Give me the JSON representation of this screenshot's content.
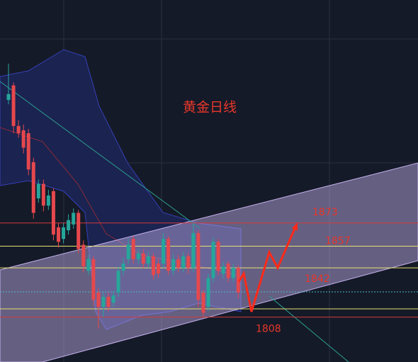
{
  "chart_data": {
    "type": "candlestick",
    "title": "黄金日线",
    "ylim": [
      1777,
      2027
    ],
    "open": [
      1958,
      1968,
      1940,
      1937,
      1935,
      1915,
      1890,
      1900,
      1885,
      1895,
      1870,
      1862,
      1868,
      1872,
      1880,
      1858,
      1840,
      1848,
      1825,
      1815,
      1822,
      1818,
      1825,
      1840,
      1848,
      1862,
      1848,
      1852,
      1845,
      1850,
      1845,
      1845,
      1862,
      1840,
      1848,
      1842,
      1850,
      1842,
      1866,
      1825,
      1815,
      1835,
      1860,
      1838,
      1845,
      1835,
      1842
    ],
    "close": [
      1962,
      1940,
      1935,
      1925,
      1910,
      1880,
      1900,
      1885,
      1892,
      1865,
      1860,
      1870,
      1875,
      1880,
      1855,
      1843,
      1848,
      1820,
      1815,
      1822,
      1815,
      1823,
      1840,
      1845,
      1858,
      1848,
      1852,
      1845,
      1850,
      1837,
      1838,
      1862,
      1840,
      1848,
      1842,
      1850,
      1842,
      1866,
      1820,
      1811,
      1835,
      1860,
      1840,
      1843,
      1835,
      1842,
      1825
    ],
    "high": [
      1983,
      1970,
      1944,
      1941,
      1938,
      1918,
      1903,
      1903,
      1896,
      1897,
      1873,
      1873,
      1879,
      1883,
      1882,
      1861,
      1851,
      1850,
      1828,
      1825,
      1825,
      1826,
      1843,
      1849,
      1862,
      1864,
      1855,
      1855,
      1853,
      1852,
      1848,
      1866,
      1864,
      1851,
      1851,
      1853,
      1852,
      1873,
      1868,
      1827,
      1838,
      1863,
      1862,
      1846,
      1847,
      1845,
      1844
    ],
    "low": [
      1955,
      1935,
      1932,
      1921,
      1906,
      1876,
      1887,
      1881,
      1882,
      1861,
      1856,
      1859,
      1865,
      1869,
      1852,
      1839,
      1837,
      1816,
      1800,
      1808,
      1812,
      1815,
      1822,
      1837,
      1845,
      1845,
      1845,
      1842,
      1842,
      1834,
      1835,
      1842,
      1837,
      1837,
      1839,
      1839,
      1838,
      1839,
      1815,
      1808,
      1812,
      1832,
      1837,
      1835,
      1832,
      1832,
      1821
    ],
    "up_color": "#26a69a",
    "down_color": "#e5484d",
    "levels": [
      1873,
      1857,
      1842,
      1808
    ]
  }
}
